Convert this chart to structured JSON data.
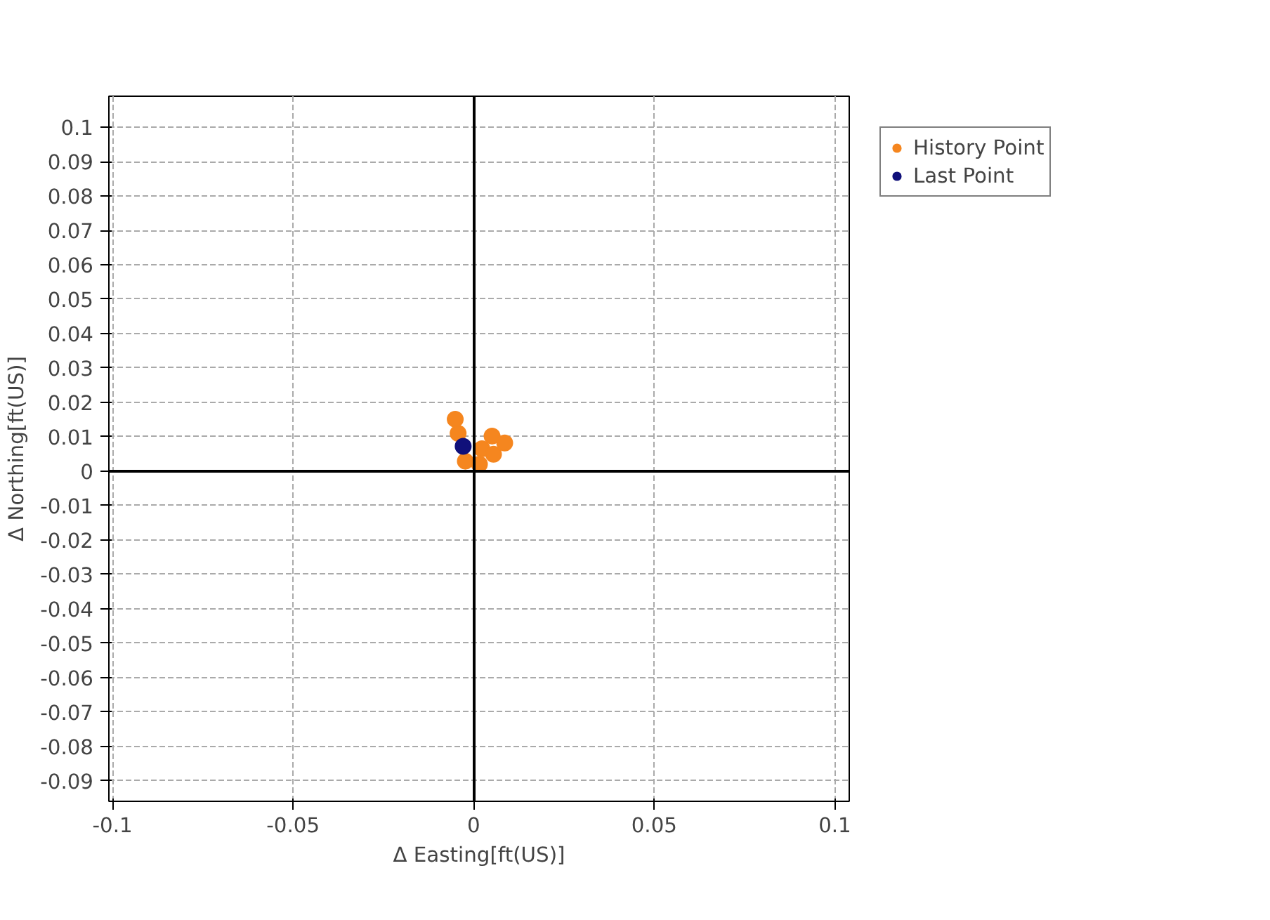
{
  "chart_data": {
    "type": "scatter",
    "xlabel": "Δ Easting[ft(US)]",
    "ylabel": "Δ Northing[ft(US)]",
    "series": [
      {
        "name": "History Point",
        "color": "#f5861f",
        "x": [
          -0.0051,
          -0.0043,
          -0.0023,
          0.0016,
          0.0023,
          0.0051,
          0.0086,
          0.0055
        ],
        "values": [
          0.0151,
          0.011,
          0.0029,
          0.002,
          0.0065,
          0.0102,
          0.0082,
          0.0049
        ]
      },
      {
        "name": "Last Point",
        "color": "#10107a",
        "x": [
          -0.0029
        ],
        "values": [
          0.0072
        ]
      }
    ],
    "xlim": [
      -0.101,
      0.104
    ],
    "ylim": [
      -0.096,
      0.109
    ],
    "xticks": [
      -0.1,
      -0.05,
      0,
      0.05,
      0.1
    ],
    "yticks": [
      0.1,
      0.09,
      0.08,
      0.07,
      0.06,
      0.05,
      0.04,
      0.03,
      0.02,
      0.01,
      0,
      -0.01,
      -0.02,
      -0.03,
      -0.04,
      -0.05,
      -0.06,
      -0.07,
      -0.08,
      -0.09
    ],
    "grid": true,
    "legend": "top right",
    "marker": "circle"
  }
}
